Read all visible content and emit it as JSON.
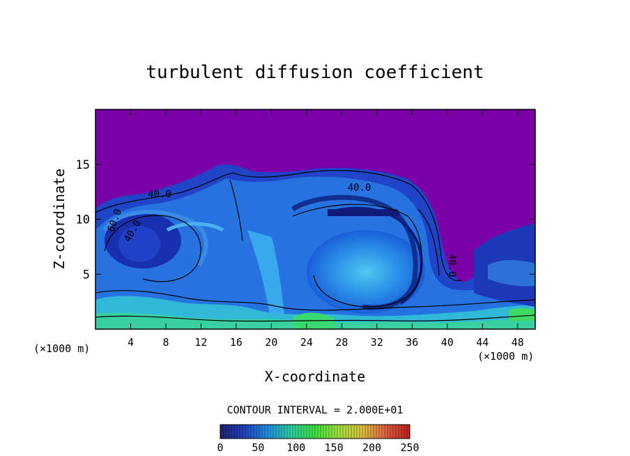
{
  "chart_data": {
    "type": "heatmap",
    "title": "turbulent diffusion coefficient",
    "xlabel": "X-coordinate",
    "ylabel": "Z-coordinate",
    "x_unit": "(×1000 m)",
    "y_unit": "(×1000 m)",
    "xlim": [
      0,
      50
    ],
    "ylim": [
      0,
      20
    ],
    "x_ticks": [
      4,
      8,
      12,
      16,
      20,
      24,
      28,
      32,
      36,
      40,
      44,
      48
    ],
    "y_ticks": [
      5,
      10,
      15
    ],
    "contour_interval_text": "CONTOUR INTERVAL = 2.000E+01",
    "contour_labels": [
      {
        "text": "40.0",
        "x": 7.3,
        "z": 12.0,
        "rotate": 0
      },
      {
        "text": "40.0",
        "x": 30.0,
        "z": 12.6,
        "rotate": 0
      },
      {
        "text": "40.0",
        "x": 4.5,
        "z": 8.8,
        "rotate": -60
      },
      {
        "text": "60.0",
        "x": 2.5,
        "z": 9.8,
        "rotate": -70
      },
      {
        "text": "40.0",
        "x": 40.2,
        "z": 5.8,
        "rotate": 90
      }
    ],
    "colorbar": {
      "ticks": [
        0,
        50,
        100,
        150,
        200,
        250
      ],
      "range": [
        0,
        250
      ],
      "colors": [
        "#202070",
        "#2040c0",
        "#2090e0",
        "#30d0a0",
        "#40e040",
        "#a0e040",
        "#e0c040",
        "#e06040",
        "#c02020"
      ]
    },
    "background_color": "#7a00a8"
  }
}
